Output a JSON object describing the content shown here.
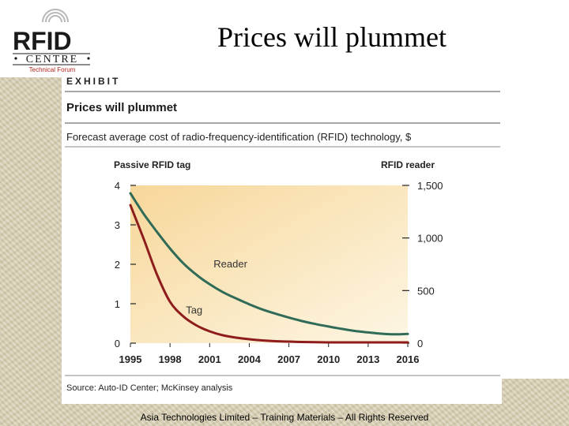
{
  "slide": {
    "title": "Prices will plummet",
    "footer": "Asia Technologies Limited – Training Materials – All Rights Reserved"
  },
  "logo": {
    "word": "RFID",
    "centre": "CENTRE",
    "tagline": "Technical Forum"
  },
  "exhibit": {
    "label": "EXHIBIT",
    "title": "Prices will plummet",
    "subtitle": "Forecast average cost of radio-frequency-identification (RFID) technology, $",
    "source": "Source: Auto-ID Center; McKinsey analysis"
  },
  "colors": {
    "reader": "#2f6b57",
    "tag": "#8e1c1c",
    "plot_top": "#f7d79a",
    "plot_bottom": "#fdf6e4",
    "rule": "#8a8a8a",
    "logo_text": "#1a1a1a",
    "logo_accent": "#b0221c"
  },
  "chart_data": {
    "type": "line",
    "title": "Prices will plummet",
    "x": [
      1995,
      1996,
      1997,
      1998,
      1999,
      2000,
      2001,
      2002,
      2003,
      2004,
      2005,
      2006,
      2007,
      2008,
      2009,
      2010,
      2011,
      2012,
      2013,
      2014,
      2015,
      2016
    ],
    "xticks": [
      1995,
      1998,
      2001,
      2004,
      2007,
      2010,
      2013,
      2016
    ],
    "xlim": [
      1995,
      2016
    ],
    "left_axis": {
      "title": "Passive RFID tag",
      "ylim": [
        0,
        4
      ],
      "ticks": [
        0,
        1,
        2,
        3,
        4
      ]
    },
    "right_axis": {
      "title": "RFID reader",
      "ylim": [
        0,
        1500
      ],
      "ticks": [
        0,
        500,
        1000,
        1500
      ],
      "tick_labels": [
        "0",
        "500",
        "1,000",
        "1,500"
      ]
    },
    "series": [
      {
        "name": "Reader",
        "axis": "right",
        "values": [
          1425,
          1230,
          1060,
          900,
          760,
          650,
          560,
          485,
          425,
          370,
          320,
          280,
          243,
          210,
          182,
          158,
          136,
          116,
          102,
          90,
          84,
          88
        ]
      },
      {
        "name": "Tag",
        "axis": "left",
        "values": [
          3.5,
          2.65,
          1.75,
          1.05,
          0.68,
          0.45,
          0.3,
          0.2,
          0.14,
          0.1,
          0.07,
          0.05,
          0.04,
          0.03,
          0.025,
          0.02,
          0.02,
          0.02,
          0.02,
          0.02,
          0.02,
          0.02
        ]
      }
    ],
    "grid": false,
    "legend": "inline labels on lines"
  }
}
